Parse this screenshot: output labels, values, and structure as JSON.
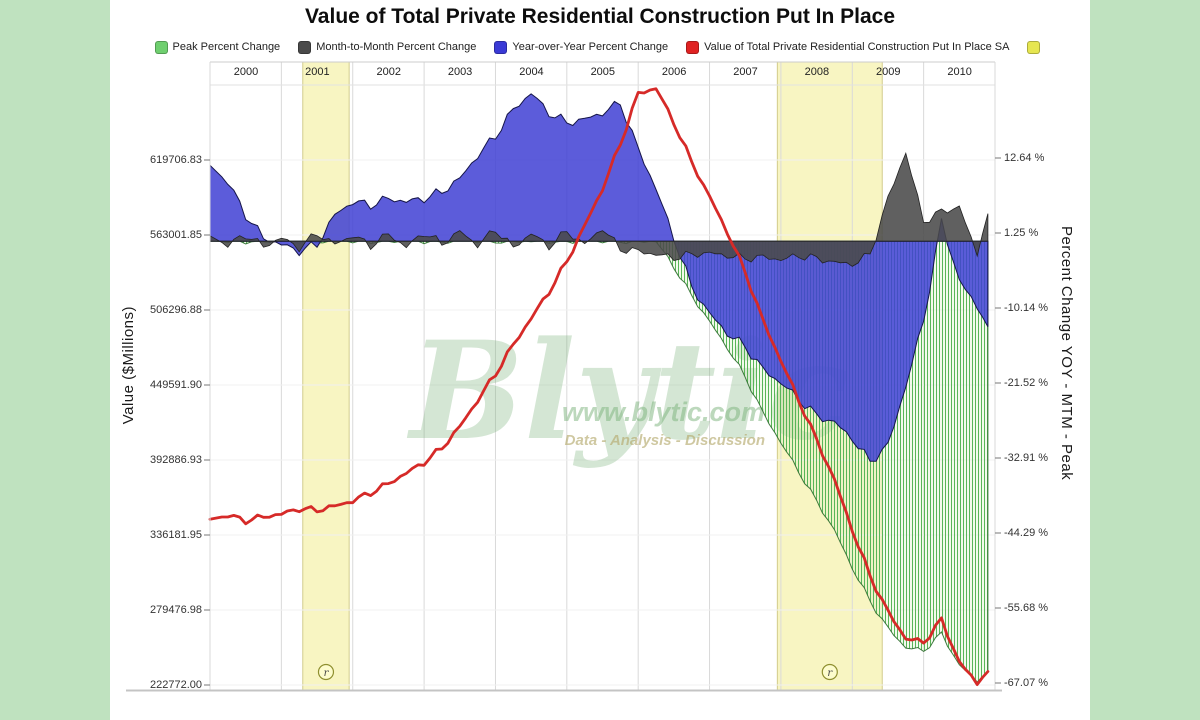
{
  "page": {
    "background_color": "#bfe2bf",
    "card_color": "#ffffff"
  },
  "chart": {
    "title": "Value of Total Private Residential Construction Put In Place",
    "legend": [
      {
        "label": "Peak Percent Change",
        "color": "#6fcf6f"
      },
      {
        "label": "Month-to-Month Percent Change",
        "color": "#4a4a4a"
      },
      {
        "label": "Year-over-Year Percent Change",
        "color": "#3a3ad6"
      },
      {
        "label": "Value of Total Private Residential Construction Put In Place SA",
        "color": "#e02222"
      },
      {
        "label": "",
        "color": "#e6e650"
      }
    ],
    "left_axis": {
      "title": "Value ($Millions)",
      "ticks": [
        "619706.83",
        "563001.85",
        "506296.88",
        "449591.90",
        "392886.93",
        "336181.95",
        "279476.98",
        "222772.00"
      ]
    },
    "right_axis": {
      "title": "Percent Change YOY - MTM - Peak",
      "ticks": [
        "12.64 %",
        "1.25 %",
        "-10.14 %",
        "-21.52 %",
        "-32.91 %",
        "-44.29 %",
        "-55.68 %",
        "-67.07 %"
      ]
    },
    "x_axis": {
      "years": [
        "2000",
        "2001",
        "2002",
        "2003",
        "2004",
        "2005",
        "2006",
        "2007",
        "2008",
        "2009",
        "2010"
      ]
    },
    "watermark": {
      "brand": "Blytic",
      "url": "www.blytic.com",
      "tagline": "Data - Analysis - Discussion"
    },
    "recession_bands": [
      {
        "start": 2001.3,
        "end": 2001.95,
        "marker": "r"
      },
      {
        "start": 2007.95,
        "end": 2009.42,
        "marker": "r"
      }
    ],
    "colors": {
      "peak_hatch": "#58b558",
      "peak_edge": "#2e6e2e",
      "mtm": "#4a4a4a",
      "yoy": "#3f3fd4",
      "value_line": "#d62a28",
      "band_fill": "#f8f5c2",
      "band_edge": "#d2cc8c"
    }
  },
  "chart_data": {
    "type": "area",
    "title": "Value of Total Private Residential Construction Put In Place",
    "x_range": [
      2000,
      2011
    ],
    "left_axis_range": [
      222772.0,
      619706.83
    ],
    "right_axis_range": [
      -67.07,
      12.64
    ],
    "x": [
      2000,
      2000.25,
      2000.5,
      2000.75,
      2001,
      2001.25,
      2001.5,
      2001.75,
      2002,
      2002.25,
      2002.5,
      2002.75,
      2003,
      2003.25,
      2003.5,
      2003.75,
      2004,
      2004.25,
      2004.5,
      2004.75,
      2005,
      2005.25,
      2005.5,
      2005.75,
      2006,
      2006.25,
      2006.5,
      2006.75,
      2007,
      2007.25,
      2007.5,
      2007.75,
      2008,
      2008.25,
      2008.5,
      2008.75,
      2009,
      2009.25,
      2009.5,
      2009.75,
      2010,
      2010.25,
      2010.5,
      2010.75,
      2010.9
    ],
    "series": [
      {
        "name": "Peak Percent Change",
        "type": "area-hatched",
        "axis": "right",
        "unit": "%",
        "color": "#58b558",
        "values": [
          0,
          0,
          0,
          0,
          0,
          0,
          0,
          0,
          0,
          0,
          0,
          0,
          0,
          0,
          0,
          0,
          0,
          0,
          0,
          0,
          0,
          0,
          0,
          0,
          0,
          0,
          -3.9,
          -8.3,
          -12.2,
          -16.2,
          -20.6,
          -26.1,
          -30.6,
          -35,
          -39.5,
          -43.9,
          -49.6,
          -54.7,
          -58.8,
          -61.7,
          -62.2,
          -59.6,
          -64.4,
          -66.8,
          -65.4
        ]
      },
      {
        "name": "Month-to-Month Percent Change",
        "type": "area",
        "axis": "right",
        "unit": "%",
        "color": "#4a4a4a",
        "values": [
          0.8,
          -0.6,
          1,
          -0.8,
          0.5,
          -1,
          1.2,
          -0.5,
          0.9,
          -0.7,
          1.1,
          -0.9,
          1.3,
          -0.4,
          1.5,
          -0.6,
          1.8,
          -1,
          1.2,
          -0.8,
          1.5,
          -0.5,
          2,
          -1.2,
          -1.5,
          -2,
          -2.5,
          -2,
          -1.8,
          -2.2,
          -2.6,
          -2.4,
          -2.8,
          -2.2,
          -2.6,
          -3.2,
          -3.5,
          -2,
          6.5,
          13.5,
          3,
          4.5,
          5.2,
          -2,
          4.2
        ]
      },
      {
        "name": "Year-over-Year Percent Change",
        "type": "area",
        "axis": "right",
        "unit": "%",
        "color": "#3f3fd4",
        "values": [
          11.5,
          9,
          4,
          0.5,
          -0.5,
          -1.5,
          -0.5,
          4,
          6,
          5.5,
          6.5,
          6,
          6.5,
          7.5,
          9.5,
          13,
          16,
          20,
          22.5,
          19.5,
          18,
          18.5,
          19.5,
          21,
          14,
          8,
          0.5,
          -7,
          -11,
          -14,
          -16,
          -19.5,
          -21.5,
          -24,
          -26.5,
          -27.5,
          -30,
          -33.5,
          -31,
          -22,
          -12,
          3,
          -6,
          -10,
          -13
        ]
      },
      {
        "name": "Value of Total Private Residential Construction Put In Place SA",
        "type": "line",
        "axis": "left",
        "unit": "$Millions",
        "color": "#d62a28",
        "values": [
          348000,
          351000,
          347000,
          350000,
          352000,
          356000,
          355000,
          358000,
          362000,
          368000,
          375000,
          383000,
          391000,
          402000,
          418000,
          438000,
          458000,
          480000,
          500000,
          520000,
          543000,
          570000,
          598000,
          632000,
          670000,
          674000,
          648000,
          618000,
          592000,
          565000,
          535000,
          498000,
          468000,
          438000,
          408000,
          378000,
          340000,
          305000,
          278000,
          258000,
          255000,
          272000,
          240000,
          224000,
          233000
        ]
      }
    ]
  }
}
